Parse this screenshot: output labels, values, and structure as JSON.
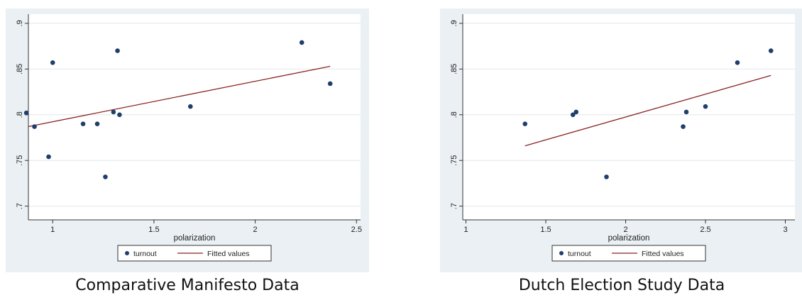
{
  "chart_data": [
    {
      "type": "scatter",
      "caption": "Comparative Manifesto Data",
      "xlabel": "polarization",
      "ylabel": "",
      "xlim": [
        0.88,
        2.52
      ],
      "ylim": [
        0.685,
        0.91
      ],
      "xticks": [
        1,
        1.5,
        2,
        2.5
      ],
      "xtick_labels": [
        "1",
        "1.5",
        "2",
        "2.5"
      ],
      "yticks": [
        0.7,
        0.75,
        0.8,
        0.85,
        0.9
      ],
      "ytick_labels": [
        ".7",
        ".75",
        ".8",
        ".85",
        ".9"
      ],
      "grid": true,
      "legend_position": "bottom",
      "series": [
        {
          "name": "turnout",
          "kind": "scatter",
          "color": "#1f3e6b",
          "points": [
            {
              "x": 0.87,
              "y": 0.802
            },
            {
              "x": 0.91,
              "y": 0.787
            },
            {
              "x": 0.98,
              "y": 0.754
            },
            {
              "x": 1.0,
              "y": 0.857
            },
            {
              "x": 1.15,
              "y": 0.79
            },
            {
              "x": 1.22,
              "y": 0.79
            },
            {
              "x": 1.26,
              "y": 0.732
            },
            {
              "x": 1.3,
              "y": 0.803
            },
            {
              "x": 1.32,
              "y": 0.87
            },
            {
              "x": 1.33,
              "y": 0.8
            },
            {
              "x": 1.68,
              "y": 0.809
            },
            {
              "x": 2.23,
              "y": 0.879
            },
            {
              "x": 2.37,
              "y": 0.834
            }
          ]
        },
        {
          "name": "Fitted values",
          "kind": "line",
          "color": "#8b2323",
          "points": [
            {
              "x": 0.88,
              "y": 0.787
            },
            {
              "x": 2.37,
              "y": 0.853
            }
          ]
        }
      ]
    },
    {
      "type": "scatter",
      "caption": "Dutch Election Study Data",
      "xlabel": "polarization",
      "ylabel": "",
      "xlim": [
        0.98,
        3.06
      ],
      "ylim": [
        0.685,
        0.91
      ],
      "xticks": [
        1,
        1.5,
        2,
        2.5,
        3
      ],
      "xtick_labels": [
        "1",
        "1.5",
        "2",
        "2.5",
        "3"
      ],
      "yticks": [
        0.7,
        0.75,
        0.8,
        0.85,
        0.9
      ],
      "ytick_labels": [
        ".7",
        ".75",
        ".8",
        ".85",
        ".9"
      ],
      "grid": true,
      "legend_position": "bottom",
      "series": [
        {
          "name": "turnout",
          "kind": "scatter",
          "color": "#1f3e6b",
          "points": [
            {
              "x": 1.37,
              "y": 0.79
            },
            {
              "x": 1.67,
              "y": 0.8
            },
            {
              "x": 1.69,
              "y": 0.803
            },
            {
              "x": 1.88,
              "y": 0.732
            },
            {
              "x": 2.36,
              "y": 0.787
            },
            {
              "x": 2.38,
              "y": 0.803
            },
            {
              "x": 2.5,
              "y": 0.809
            },
            {
              "x": 2.7,
              "y": 0.857
            },
            {
              "x": 2.91,
              "y": 0.87
            }
          ]
        },
        {
          "name": "Fitted values",
          "kind": "line",
          "color": "#8b2323",
          "points": [
            {
              "x": 1.37,
              "y": 0.766
            },
            {
              "x": 2.91,
              "y": 0.843
            }
          ]
        }
      ]
    }
  ]
}
